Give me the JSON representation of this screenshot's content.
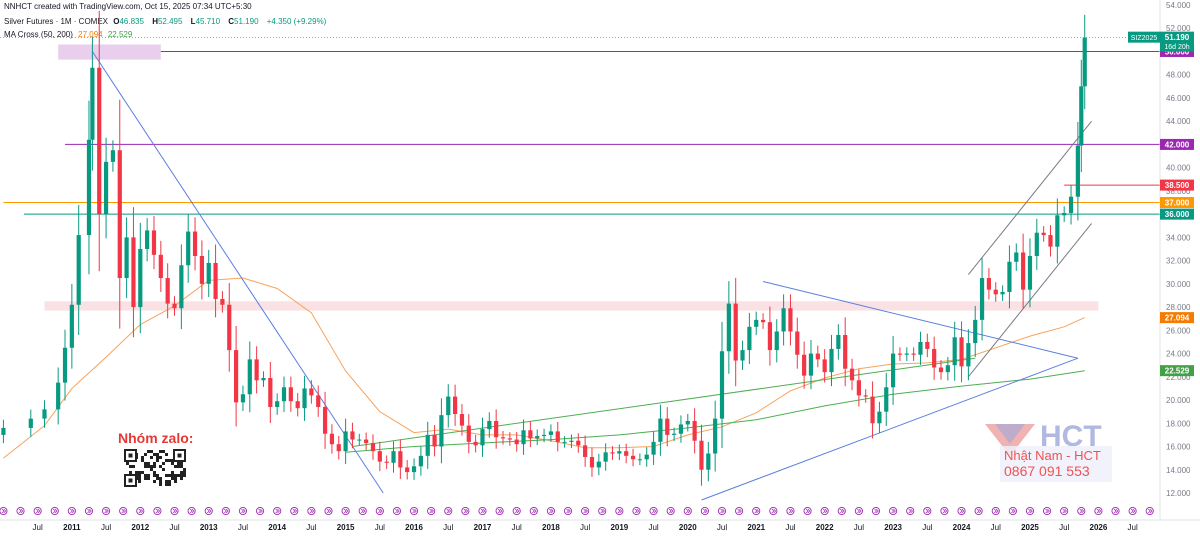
{
  "header": {
    "created_by": "NNHCT created with TradingView.com, Oct 15, 2025 07:34 UTC+5:30",
    "symbol": "Silver Futures · 1M · COMEX",
    "open_label": "O",
    "open": "46.835",
    "high_label": "H",
    "high": "52.495",
    "low_label": "L",
    "low": "45.710",
    "close_label": "C",
    "close": "51.190",
    "change": "+4.350 (+9.29%)",
    "ma_label": "MA Cross (50, 200)",
    "ma_fast": "27.094",
    "ma_slow": "22.529"
  },
  "price_tag": {
    "symbol": "SIZ2025",
    "price": "51.190",
    "countdown": "16d 20h"
  },
  "level_tags": [
    {
      "value": 50.0,
      "text": "50.000",
      "color": "#9c27b0"
    },
    {
      "value": 42.0,
      "text": "42.000",
      "color": "#9c27b0"
    },
    {
      "value": 38.5,
      "text": "38.500",
      "color": "#f23645"
    },
    {
      "value": 37.0,
      "text": "37.000",
      "color": "#ff9800"
    },
    {
      "value": 36.0,
      "text": "36.000",
      "color": "#089981"
    },
    {
      "value": 27.094,
      "text": "27.094",
      "color": "#f57c00"
    },
    {
      "value": 22.529,
      "text": "22.529",
      "color": "#43a047"
    }
  ],
  "watermark": {
    "group": "Nhóm zalo:",
    "logo": "HCT",
    "name": "Nhật Nam - HCT",
    "phone": "0867 091 553"
  },
  "colors": {
    "up": "#089981",
    "down": "#f23645",
    "ma_fast": "#f7a35c",
    "ma_slow": "#4caf50",
    "trend": "#5b7fe0",
    "zone_purple": "#e1bee7",
    "zone_pink": "#f8d7da"
  },
  "chart_data": {
    "type": "candlestick",
    "interval": "1M",
    "y_axis": {
      "min": 12,
      "max": 54,
      "step": 2,
      "position": "right"
    },
    "y_ticks": [
      "12.000",
      "14.000",
      "16.000",
      "18.000",
      "20.000",
      "22.000",
      "24.000",
      "26.000",
      "28.000",
      "30.000",
      "32.000",
      "34.000",
      "36.000",
      "38.000",
      "40.000",
      "42.000",
      "44.000",
      "46.000",
      "48.000",
      "50.000",
      "52.000",
      "54.000"
    ],
    "x_labels": [
      {
        "t": 2010.5,
        "text": "Jul"
      },
      {
        "t": 2011.0,
        "text": "2011"
      },
      {
        "t": 2011.5,
        "text": "Jul"
      },
      {
        "t": 2012.0,
        "text": "2012"
      },
      {
        "t": 2012.5,
        "text": "Jul"
      },
      {
        "t": 2013.0,
        "text": "2013"
      },
      {
        "t": 2013.5,
        "text": "Jul"
      },
      {
        "t": 2014.0,
        "text": "2014"
      },
      {
        "t": 2014.5,
        "text": "Jul"
      },
      {
        "t": 2015.0,
        "text": "2015"
      },
      {
        "t": 2015.5,
        "text": "Jul"
      },
      {
        "t": 2016.0,
        "text": "2016"
      },
      {
        "t": 2016.5,
        "text": "Jul"
      },
      {
        "t": 2017.0,
        "text": "2017"
      },
      {
        "t": 2017.5,
        "text": "Jul"
      },
      {
        "t": 2018.0,
        "text": "2018"
      },
      {
        "t": 2018.5,
        "text": "Jul"
      },
      {
        "t": 2019.0,
        "text": "2019"
      },
      {
        "t": 2019.5,
        "text": "Jul"
      },
      {
        "t": 2020.0,
        "text": "2020"
      },
      {
        "t": 2020.5,
        "text": "Jul"
      },
      {
        "t": 2021.0,
        "text": "2021"
      },
      {
        "t": 2021.5,
        "text": "Jul"
      },
      {
        "t": 2022.0,
        "text": "2022"
      },
      {
        "t": 2022.5,
        "text": "Jul"
      },
      {
        "t": 2023.0,
        "text": "2023"
      },
      {
        "t": 2023.5,
        "text": "Jul"
      },
      {
        "t": 2024.0,
        "text": "2024"
      },
      {
        "t": 2024.5,
        "text": "Jul"
      },
      {
        "t": 2025.0,
        "text": "2025"
      },
      {
        "t": 2025.5,
        "text": "Jul"
      },
      {
        "t": 2026.0,
        "text": "2026"
      },
      {
        "t": 2026.5,
        "text": "Jul"
      }
    ],
    "closes": [
      [
        2010.0,
        17.6
      ],
      [
        2010.4,
        18.4
      ],
      [
        2010.6,
        19.2
      ],
      [
        2010.8,
        21.5
      ],
      [
        2010.9,
        24.5
      ],
      [
        2011.0,
        28.2
      ],
      [
        2011.1,
        34.2
      ],
      [
        2011.25,
        42.4
      ],
      [
        2011.3,
        48.6
      ],
      [
        2011.4,
        36.0
      ],
      [
        2011.5,
        40.5
      ],
      [
        2011.6,
        41.5
      ],
      [
        2011.7,
        30.5
      ],
      [
        2011.8,
        34.0
      ],
      [
        2011.9,
        28.0
      ],
      [
        2012.0,
        33.0
      ],
      [
        2012.1,
        34.6
      ],
      [
        2012.2,
        32.5
      ],
      [
        2012.3,
        30.5
      ],
      [
        2012.4,
        28.3
      ],
      [
        2012.5,
        27.9
      ],
      [
        2012.6,
        31.6
      ],
      [
        2012.7,
        34.5
      ],
      [
        2012.8,
        32.4
      ],
      [
        2012.9,
        30.0
      ],
      [
        2013.0,
        31.8
      ],
      [
        2013.1,
        28.7
      ],
      [
        2013.2,
        28.2
      ],
      [
        2013.3,
        24.3
      ],
      [
        2013.4,
        19.8
      ],
      [
        2013.5,
        20.5
      ],
      [
        2013.6,
        23.5
      ],
      [
        2013.7,
        21.7
      ],
      [
        2013.8,
        21.9
      ],
      [
        2013.9,
        19.4
      ],
      [
        2014.0,
        19.9
      ],
      [
        2014.1,
        21.1
      ],
      [
        2014.2,
        19.9
      ],
      [
        2014.3,
        19.3
      ],
      [
        2014.4,
        21.0
      ],
      [
        2014.5,
        20.4
      ],
      [
        2014.6,
        19.4
      ],
      [
        2014.7,
        17.1
      ],
      [
        2014.8,
        16.2
      ],
      [
        2014.9,
        15.6
      ],
      [
        2015.0,
        17.3
      ],
      [
        2015.1,
        16.6
      ],
      [
        2015.2,
        16.6
      ],
      [
        2015.3,
        16.3
      ],
      [
        2015.4,
        15.6
      ],
      [
        2015.5,
        14.7
      ],
      [
        2015.6,
        14.6
      ],
      [
        2015.7,
        15.6
      ],
      [
        2015.8,
        14.2
      ],
      [
        2015.9,
        13.8
      ],
      [
        2016.0,
        14.3
      ],
      [
        2016.1,
        15.2
      ],
      [
        2016.2,
        17.0
      ],
      [
        2016.3,
        16.0
      ],
      [
        2016.4,
        18.7
      ],
      [
        2016.5,
        20.3
      ],
      [
        2016.6,
        18.8
      ],
      [
        2016.7,
        17.8
      ],
      [
        2016.8,
        16.4
      ],
      [
        2016.9,
        16.1
      ],
      [
        2017.0,
        17.5
      ],
      [
        2017.1,
        18.2
      ],
      [
        2017.2,
        16.8
      ],
      [
        2017.3,
        16.7
      ],
      [
        2017.4,
        16.6
      ],
      [
        2017.5,
        16.2
      ],
      [
        2017.6,
        17.4
      ],
      [
        2017.7,
        16.7
      ],
      [
        2017.8,
        16.9
      ],
      [
        2017.9,
        17.0
      ],
      [
        2018.0,
        17.3
      ],
      [
        2018.1,
        16.4
      ],
      [
        2018.2,
        16.4
      ],
      [
        2018.3,
        16.5
      ],
      [
        2018.4,
        16.1
      ],
      [
        2018.5,
        15.1
      ],
      [
        2018.6,
        14.2
      ],
      [
        2018.7,
        14.7
      ],
      [
        2018.8,
        15.5
      ],
      [
        2018.9,
        15.4
      ],
      [
        2019.0,
        15.6
      ],
      [
        2019.1,
        15.2
      ],
      [
        2019.2,
        14.9
      ],
      [
        2019.3,
        14.9
      ],
      [
        2019.4,
        15.3
      ],
      [
        2019.5,
        16.4
      ],
      [
        2019.6,
        18.4
      ],
      [
        2019.7,
        17.0
      ],
      [
        2019.8,
        17.1
      ],
      [
        2019.9,
        17.9
      ],
      [
        2020.0,
        18.2
      ],
      [
        2020.1,
        16.5
      ],
      [
        2020.2,
        14.0
      ],
      [
        2020.3,
        15.4
      ],
      [
        2020.4,
        18.4
      ],
      [
        2020.5,
        24.2
      ],
      [
        2020.6,
        28.3
      ],
      [
        2020.7,
        23.4
      ],
      [
        2020.8,
        24.3
      ],
      [
        2020.9,
        26.3
      ],
      [
        2021.0,
        26.9
      ],
      [
        2021.1,
        26.7
      ],
      [
        2021.2,
        24.3
      ],
      [
        2021.3,
        25.9
      ],
      [
        2021.4,
        27.9
      ],
      [
        2021.5,
        25.9
      ],
      [
        2021.6,
        23.9
      ],
      [
        2021.7,
        22.1
      ],
      [
        2021.8,
        24.0
      ],
      [
        2021.9,
        23.5
      ],
      [
        2022.0,
        22.4
      ],
      [
        2022.1,
        24.4
      ],
      [
        2022.2,
        25.6
      ],
      [
        2022.3,
        22.7
      ],
      [
        2022.4,
        21.7
      ],
      [
        2022.5,
        20.4
      ],
      [
        2022.6,
        20.3
      ],
      [
        2022.7,
        18.0
      ],
      [
        2022.8,
        19.0
      ],
      [
        2022.9,
        21.1
      ],
      [
        2023.0,
        24.0
      ],
      [
        2023.1,
        23.9
      ],
      [
        2023.2,
        24.0
      ],
      [
        2023.3,
        23.9
      ],
      [
        2023.4,
        25.0
      ],
      [
        2023.5,
        24.4
      ],
      [
        2023.6,
        22.8
      ],
      [
        2023.7,
        22.4
      ],
      [
        2023.8,
        23.0
      ],
      [
        2023.9,
        25.4
      ],
      [
        2024.0,
        22.9
      ],
      [
        2024.1,
        24.9
      ],
      [
        2024.2,
        26.9
      ],
      [
        2024.3,
        30.5
      ],
      [
        2024.4,
        29.5
      ],
      [
        2024.5,
        29.1
      ],
      [
        2024.6,
        29.3
      ],
      [
        2024.7,
        31.9
      ],
      [
        2024.8,
        32.7
      ],
      [
        2024.9,
        29.5
      ],
      [
        2025.0,
        32.4
      ],
      [
        2025.1,
        34.4
      ],
      [
        2025.2,
        34.2
      ],
      [
        2025.3,
        33.2
      ],
      [
        2025.4,
        35.9
      ],
      [
        2025.5,
        36.1
      ],
      [
        2025.6,
        37.5
      ],
      [
        2025.7,
        41.9
      ],
      [
        2025.75,
        47.0
      ],
      [
        2025.8,
        51.19
      ]
    ],
    "horizontal_levels": [
      50.0,
      42.0,
      38.5,
      37.0,
      36.0
    ],
    "zones": [
      {
        "from": 49.3,
        "to": 50.6,
        "t_from": 2010.8,
        "t_to": 2012.3,
        "color": "#e1bee7"
      },
      {
        "from": 27.7,
        "to": 28.5,
        "t_from": 2010.6,
        "t_to": 2026.0,
        "color": "#f8d7da"
      }
    ],
    "trend_lines": [
      {
        "from": [
          2011.3,
          50.0
        ],
        "to": [
          2015.55,
          12.0
        ]
      },
      {
        "from": [
          2015.1,
          16.0
        ],
        "to": [
          2024.2,
          23.6
        ]
      },
      {
        "from": [
          2021.1,
          30.2
        ],
        "to": [
          2025.7,
          23.6
        ]
      },
      {
        "from": [
          2020.2,
          11.4
        ],
        "to": [
          2025.7,
          23.6
        ]
      },
      {
        "from": [
          2024.1,
          22.0
        ],
        "to": [
          2025.9,
          35.2
        ]
      },
      {
        "from": [
          2024.1,
          30.8
        ],
        "to": [
          2025.9,
          44.0
        ]
      }
    ],
    "ma_fast_points": [
      [
        2010.0,
        15.0
      ],
      [
        2010.6,
        17.8
      ],
      [
        2011.0,
        21.0
      ],
      [
        2011.5,
        23.7
      ],
      [
        2012.0,
        26.5
      ],
      [
        2012.5,
        28.1
      ],
      [
        2013.0,
        30.3
      ],
      [
        2013.5,
        30.5
      ],
      [
        2014.0,
        29.6
      ],
      [
        2014.5,
        27.5
      ],
      [
        2015.0,
        22.5
      ],
      [
        2015.5,
        19.0
      ],
      [
        2016.0,
        17.2
      ],
      [
        2016.5,
        17.5
      ],
      [
        2017.0,
        17.0
      ],
      [
        2017.5,
        17.0
      ],
      [
        2018.0,
        16.5
      ],
      [
        2018.5,
        15.9
      ],
      [
        2019.0,
        15.9
      ],
      [
        2019.5,
        16.0
      ],
      [
        2020.0,
        17.0
      ],
      [
        2020.5,
        17.7
      ],
      [
        2021.0,
        18.9
      ],
      [
        2021.5,
        20.8
      ],
      [
        2022.0,
        21.9
      ],
      [
        2022.5,
        22.7
      ],
      [
        2023.0,
        23.1
      ],
      [
        2023.5,
        23.2
      ],
      [
        2024.0,
        23.5
      ],
      [
        2024.5,
        24.5
      ],
      [
        2025.0,
        25.5
      ],
      [
        2025.5,
        26.3
      ],
      [
        2025.8,
        27.094
      ]
    ],
    "ma_slow_points": [
      [
        2015.0,
        15.5
      ],
      [
        2016.0,
        16.0
      ],
      [
        2017.0,
        16.3
      ],
      [
        2018.0,
        16.6
      ],
      [
        2019.0,
        17.0
      ],
      [
        2020.0,
        17.6
      ],
      [
        2021.0,
        18.3
      ],
      [
        2022.0,
        19.5
      ],
      [
        2023.0,
        20.5
      ],
      [
        2024.0,
        21.2
      ],
      [
        2025.0,
        21.8
      ],
      [
        2025.8,
        22.529
      ]
    ]
  }
}
